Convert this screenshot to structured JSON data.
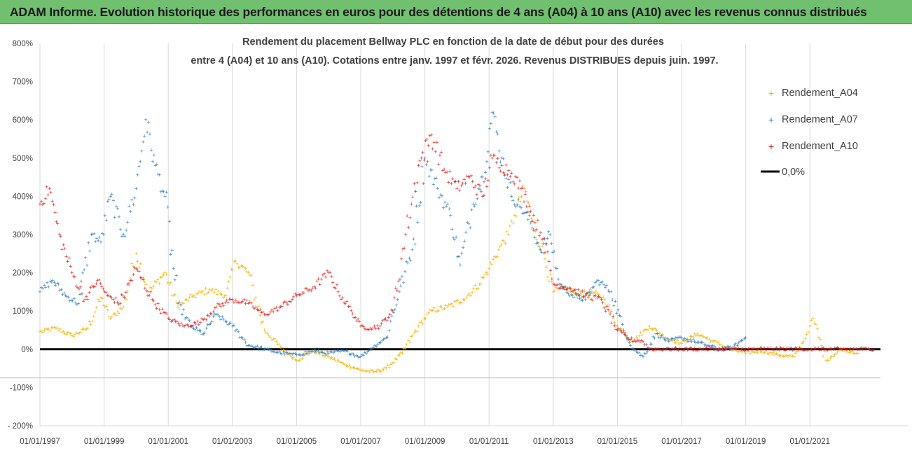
{
  "banner": {
    "title": "ADAM Informe. Evolution historique des performances en euros pour des détentions de 4 ans (A04) à 10 ans (A10) avec les revenus connus distribués"
  },
  "chart_data": {
    "type": "scatter",
    "title_lines": [
      "Rendement du placement Bellway PLC en fonction de la date de début pour des durées",
      "entre 4 (A04) et 10 ans (A10). Cotations entre janv. 1997 et févr. 2026. Revenus DISTRIBUES depuis juin. 1997."
    ],
    "x_tick_labels": [
      "01/01/1997",
      "01/01/1999",
      "01/01/2001",
      "01/01/2003",
      "01/01/2005",
      "01/01/2007",
      "01/01/2009",
      "01/01/2011",
      "01/01/2013",
      "01/01/2015",
      "01/01/2017",
      "01/01/2019",
      "01/01/2021"
    ],
    "x_tick_years": [
      1997,
      1999,
      2001,
      2003,
      2005,
      2007,
      2009,
      2011,
      2013,
      2015,
      2017,
      2019,
      2021
    ],
    "xlim": [
      1997.0,
      2023.2
    ],
    "y_tick_labels": [
      "800%",
      "700%",
      "600%",
      "500%",
      "400%",
      "300%",
      "200%",
      "100%",
      "0%",
      "-100%",
      "- 200%"
    ],
    "y_tick_values": [
      800,
      700,
      600,
      500,
      400,
      300,
      200,
      100,
      0,
      -100,
      -200
    ],
    "ylim": [
      -200,
      800
    ],
    "grid": "vertical",
    "legend_position": "top-right",
    "series": [
      {
        "name": "Rendement_A04",
        "color": "#f5b400",
        "x": [
          1997.0,
          1997.5,
          1998.0,
          1998.5,
          1998.9,
          1999.2,
          1999.6,
          2000.0,
          2000.4,
          2000.9,
          2001.3,
          2001.8,
          2002.3,
          2002.8,
          2003.1,
          2003.5,
          2004.0,
          2004.5,
          2005.0,
          2005.5,
          2006.0,
          2006.5,
          2007.0,
          2007.4,
          2007.8,
          2008.3,
          2008.8,
          2009.2,
          2009.7,
          2010.2,
          2010.7,
          2011.0,
          2011.3,
          2011.6,
          2011.8,
          2012.1,
          2012.4,
          2012.7,
          2013.0,
          2013.4,
          2013.8,
          2014.2,
          2014.6,
          2015.0,
          2015.5,
          2016.0,
          2016.5,
          2017.0,
          2017.5,
          2018.0,
          2018.5,
          2019.0,
          2019.5,
          2020.0,
          2020.5,
          2020.8,
          2021.0,
          2021.1,
          2021.5,
          2022.0,
          2022.5
        ],
        "y": [
          45,
          55,
          35,
          55,
          135,
          80,
          110,
          250,
          150,
          200,
          110,
          140,
          155,
          140,
          230,
          200,
          50,
          5,
          -30,
          -5,
          -20,
          -40,
          -55,
          -60,
          -50,
          -10,
          60,
          100,
          110,
          130,
          170,
          210,
          260,
          300,
          350,
          420,
          310,
          250,
          150,
          160,
          140,
          150,
          130,
          60,
          20,
          60,
          30,
          15,
          40,
          20,
          0,
          -10,
          -5,
          -15,
          -20,
          20,
          60,
          80,
          -30,
          0,
          -10
        ]
      },
      {
        "name": "Rendement_A07",
        "color": "#2f7fc1",
        "x": [
          1997.0,
          1997.4,
          1997.8,
          1998.2,
          1998.6,
          1998.9,
          1999.2,
          1999.6,
          2000.0,
          2000.3,
          2000.6,
          2000.9,
          2001.3,
          2001.7,
          2002.1,
          2002.5,
          2003.0,
          2003.5,
          2004.0,
          2004.5,
          2005.0,
          2005.5,
          2006.0,
          2006.5,
          2007.0,
          2007.3,
          2007.8,
          2008.2,
          2008.6,
          2009.0,
          2009.4,
          2009.8,
          2010.1,
          2010.5,
          2010.8,
          2011.1,
          2011.4,
          2011.7,
          2012.0,
          2012.3,
          2012.6,
          2012.9,
          2013.2,
          2013.6,
          2014.0,
          2014.4,
          2014.8,
          2015.2,
          2015.5,
          2015.8,
          2016.2,
          2016.6,
          2017.0,
          2017.4,
          2017.8,
          2018.2,
          2018.6,
          2019.0
        ],
        "y": [
          150,
          180,
          140,
          120,
          300,
          280,
          400,
          300,
          420,
          600,
          480,
          400,
          120,
          60,
          40,
          90,
          60,
          10,
          0,
          -10,
          -15,
          -5,
          -10,
          -5,
          -20,
          0,
          30,
          150,
          260,
          500,
          420,
          350,
          220,
          380,
          450,
          620,
          500,
          400,
          370,
          330,
          260,
          300,
          170,
          140,
          130,
          180,
          150,
          50,
          0,
          -20,
          40,
          20,
          30,
          20,
          10,
          0,
          5,
          30
        ]
      },
      {
        "name": "Rendement_A10",
        "color": "#e02020",
        "x": [
          1997.0,
          1997.3,
          1997.6,
          1998.0,
          1998.4,
          1998.8,
          1999.1,
          1999.5,
          2000.0,
          2000.5,
          2001.0,
          2001.5,
          2002.0,
          2002.5,
          2003.0,
          2003.5,
          2004.0,
          2004.5,
          2005.0,
          2005.5,
          2006.0,
          2006.3,
          2006.7,
          2007.0,
          2007.3,
          2007.6,
          2008.0,
          2008.4,
          2008.8,
          2009.2,
          2009.6,
          2010.0,
          2010.4,
          2010.8,
          2011.1,
          2011.4,
          2011.7,
          2012.0,
          2012.3,
          2012.7,
          2013.0,
          2013.5,
          2014.0,
          2014.5,
          2015.0,
          2015.4,
          2015.8,
          2016.0,
          2016.3,
          2017.0,
          2018.0,
          2019.0,
          2020.0,
          2021.0,
          2022.0,
          2023.0
        ],
        "y": [
          380,
          420,
          300,
          200,
          130,
          180,
          140,
          120,
          210,
          130,
          80,
          60,
          70,
          110,
          130,
          120,
          90,
          110,
          140,
          160,
          200,
          150,
          100,
          60,
          55,
          60,
          100,
          300,
          480,
          560,
          470,
          420,
          450,
          400,
          500,
          480,
          460,
          420,
          360,
          290,
          170,
          160,
          140,
          130,
          50,
          25,
          20,
          0,
          0,
          0,
          0,
          0,
          0,
          0,
          0,
          0
        ]
      }
    ],
    "reference_line": {
      "name": "0,0%",
      "value": 0,
      "color": "#000000"
    }
  }
}
